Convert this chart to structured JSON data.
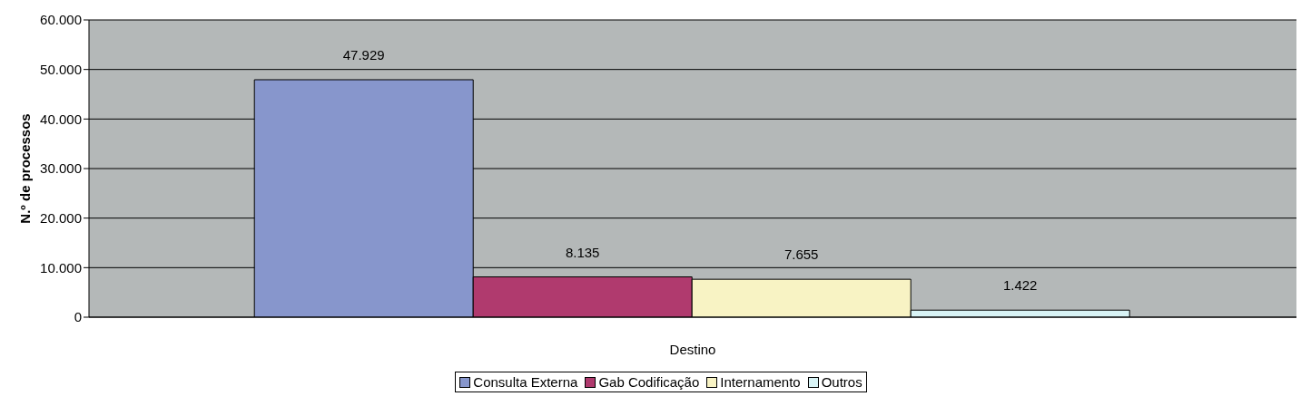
{
  "chart_data": {
    "type": "bar",
    "ylabel": "N.º de processos",
    "categories": [
      "Destino"
    ],
    "series": [
      {
        "name": "Consulta Externa",
        "color": "#8796cc",
        "values": [
          47929
        ],
        "value_labels": [
          "47.929"
        ]
      },
      {
        "name": "Gab Codificação",
        "color": "#b03a6e",
        "values": [
          8135
        ],
        "value_labels": [
          "8.135"
        ]
      },
      {
        "name": "Internamento",
        "color": "#f8f3c4",
        "values": [
          7655
        ],
        "value_labels": [
          "7.655"
        ]
      },
      {
        "name": "Outros",
        "color": "#d8f3f5",
        "values": [
          1422
        ],
        "value_labels": [
          "1.422"
        ]
      }
    ],
    "ylim": [
      0,
      60000
    ],
    "yticks": [
      {
        "value": 0,
        "label": "0"
      },
      {
        "value": 10000,
        "label": "10.000"
      },
      {
        "value": 20000,
        "label": "20.000"
      },
      {
        "value": 30000,
        "label": "30.000"
      },
      {
        "value": 40000,
        "label": "40.000"
      },
      {
        "value": 50000,
        "label": "50.000"
      },
      {
        "value": 60000,
        "label": "60.000"
      }
    ],
    "grid": "y",
    "legend": "bottom"
  }
}
